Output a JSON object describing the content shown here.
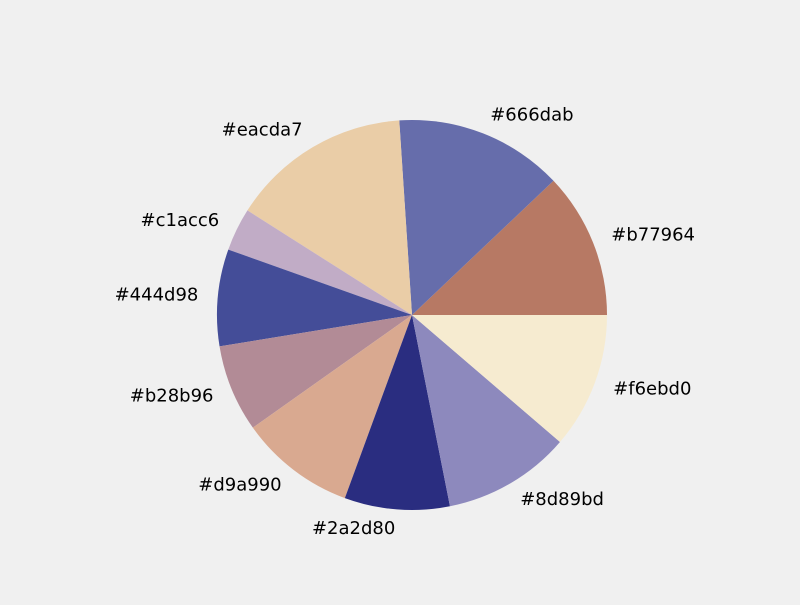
{
  "chart_data": {
    "type": "pie",
    "title": "",
    "start_angle_deg": 0,
    "direction": "counterclockwise",
    "slices": [
      {
        "label": "#b77964",
        "value": 12.2,
        "color": "#b77964"
      },
      {
        "label": "#666dab",
        "value": 14.1,
        "color": "#666dab"
      },
      {
        "label": "#eacda7",
        "value": 15.1,
        "color": "#eacda7"
      },
      {
        "label": "#c1acc6",
        "value": 3.6,
        "color": "#c1acc6"
      },
      {
        "label": "#444d98",
        "value": 8.1,
        "color": "#444d98"
      },
      {
        "label": "#b28b96",
        "value": 7.3,
        "color": "#b28b96"
      },
      {
        "label": "#d9a990",
        "value": 9.7,
        "color": "#d9a990"
      },
      {
        "label": "#2a2d80",
        "value": 8.8,
        "color": "#2a2d80"
      },
      {
        "label": "#8d89bd",
        "value": 10.7,
        "color": "#8d89bd"
      },
      {
        "label": "#f6ebd0",
        "value": 11.4,
        "color": "#f6ebd0"
      }
    ]
  }
}
